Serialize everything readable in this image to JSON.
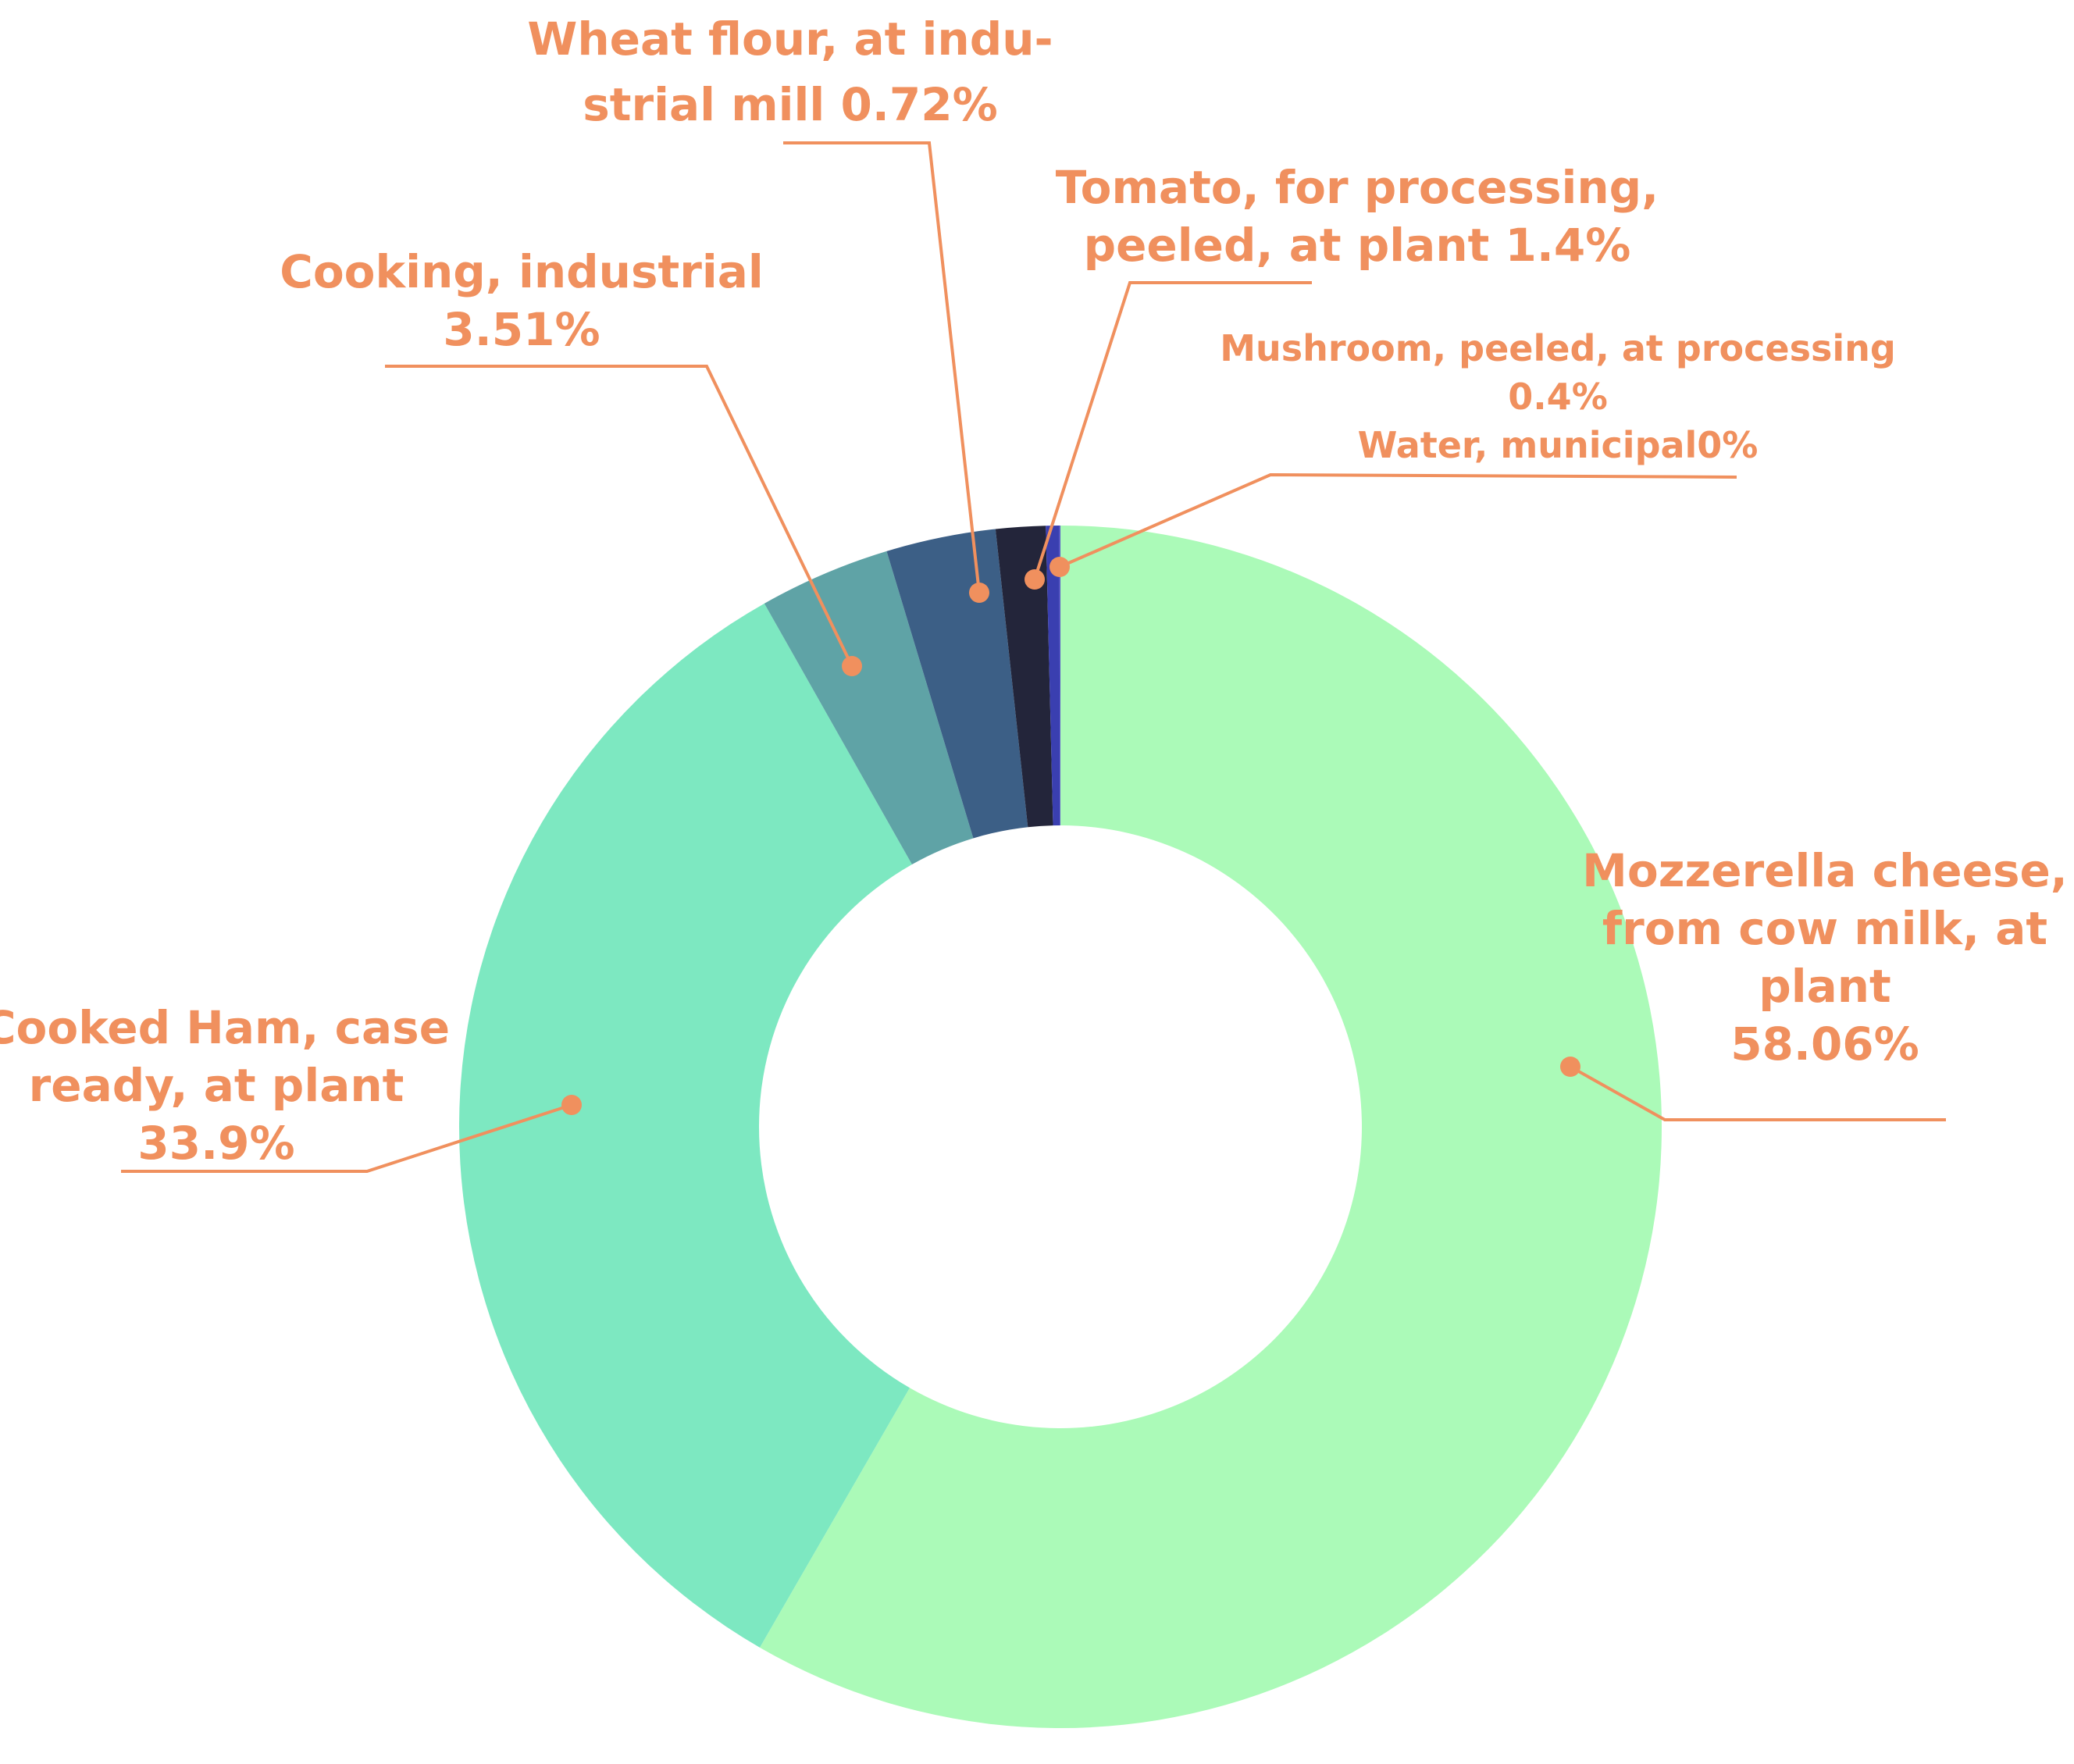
{
  "chart_data": {
    "type": "pie",
    "style": "donut",
    "title": "",
    "slices": [
      {
        "name": "Mozzerella cheese, from cow milk, at plant",
        "value": 58.06,
        "value_label": "58.06%",
        "label_lines": [
          "Mozzerella cheese,",
          "from cow milk, at",
          "plant",
          "58.06%"
        ],
        "color": "#abfab8"
      },
      {
        "name": "Cooked Ham, case ready, at plant",
        "value": 33.9,
        "value_label": "33.9%",
        "label_lines": [
          "Cooked Ham, case",
          "ready, at plant",
          "33.9%"
        ],
        "color": "#7de8c1"
      },
      {
        "name": "Cooking, industrial",
        "value": 3.51,
        "value_label": "3.51%",
        "label_lines": [
          "Cooking, industrial",
          "3.51%"
        ],
        "color": "#5fa3a6"
      },
      {
        "name": "Wheat flour, at industrial mill",
        "value": 0.72,
        "value_label": "0.72%",
        "label_lines": [
          "Wheat flour, at indu-",
          "strial mill 0.72%"
        ],
        "color": "#3c5f86"
      },
      {
        "name": "Tomato, for processing, peeled, at plant",
        "value": 1.4,
        "value_label": "1.4%",
        "label_lines": [
          "Tomato, for processing,",
          "peeled, at plant 1.4%"
        ],
        "color": "#23253a"
      },
      {
        "name": "Mushroom, peeled, at processing",
        "value": 0.4,
        "value_label": "0.4%",
        "label_lines": [
          "Mushroom, peeled, at processing",
          "0.4%"
        ],
        "color": "#3a3fb0"
      },
      {
        "name": "Water, municipal",
        "value": 0,
        "value_label": "0%",
        "label_lines": [
          "Water, municipal0%"
        ],
        "color": "#5552c8"
      }
    ],
    "label_color": "#f0905e"
  }
}
